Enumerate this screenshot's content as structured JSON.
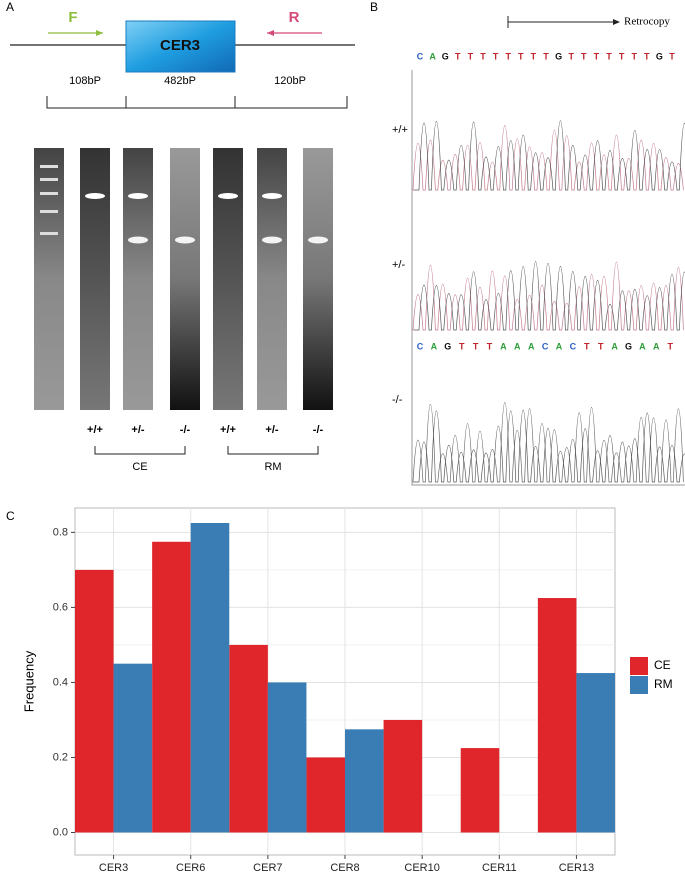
{
  "panel_a": {
    "label": "A",
    "forward_primer": "F",
    "reverse_primer": "R",
    "gene": "CER3",
    "segments": [
      "108bP",
      "482bP",
      "120bP"
    ],
    "lanes": [
      "+/+",
      "+/-",
      "-/-",
      "+/+",
      "+/-",
      "-/-"
    ],
    "groups": [
      "CE",
      "RM"
    ]
  },
  "panel_b": {
    "label": "B",
    "annotation": "Retrocopy",
    "sequence_top": [
      "C",
      "A",
      "G",
      "T",
      "T",
      "T",
      "T",
      "T",
      "T",
      "T",
      "T",
      "G",
      "T",
      "T",
      "T",
      "T",
      "T",
      "T",
      "T",
      "G",
      "T"
    ],
    "sequence_bottom": [
      "C",
      "A",
      "G",
      "T",
      "T",
      "T",
      "A",
      "A",
      "A",
      "C",
      "A",
      "C",
      "T",
      "T",
      "A",
      "G",
      "A",
      "A",
      "T"
    ],
    "genotypes": [
      "+/+",
      "+/-",
      "-/-"
    ]
  },
  "panel_c_label": "C",
  "chart_data": {
    "type": "bar",
    "ylabel": "Frequency",
    "categories": [
      "CER3",
      "CER6",
      "CER7",
      "CER8",
      "CER10",
      "CER11",
      "CER13"
    ],
    "series": [
      {
        "name": "CE",
        "color": "#e0262b",
        "values": [
          0.7,
          0.775,
          0.5,
          0.2,
          0.3,
          0.225,
          0.625
        ]
      },
      {
        "name": "RM",
        "color": "#3a7db5",
        "values": [
          0.45,
          0.825,
          0.4,
          0.275,
          0,
          0,
          0.425
        ]
      }
    ],
    "ylim": [
      -0.06,
      0.865
    ],
    "yticks": [
      {
        "value": 0,
        "label": "0.0"
      },
      0.2,
      0.4,
      0.6,
      0.8
    ],
    "grid": true,
    "legend": "right"
  }
}
